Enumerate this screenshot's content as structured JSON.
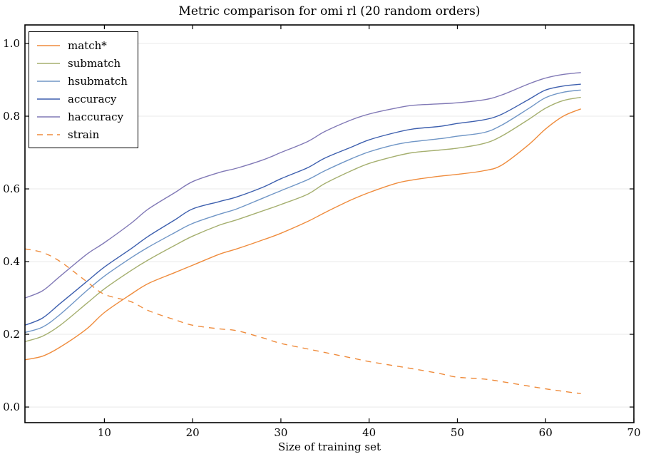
{
  "chart_data": {
    "type": "line",
    "title": "Metric comparison for omi rl (20 random orders)",
    "xlabel": "Size of training set",
    "ylabel": "",
    "xlim": [
      1,
      70
    ],
    "ylim": [
      -0.043,
      1.051
    ],
    "x_ticks": [
      10,
      20,
      30,
      40,
      50,
      60,
      70
    ],
    "y_ticks": [
      0.0,
      0.2,
      0.4,
      0.6,
      0.8,
      1.0
    ],
    "grid": "horizontal-only",
    "legend_position": "upper-left",
    "x": [
      1,
      3,
      5,
      8,
      10,
      13,
      15,
      18,
      20,
      23,
      25,
      28,
      30,
      33,
      35,
      38,
      40,
      43,
      45,
      48,
      50,
      53,
      55,
      58,
      60,
      62,
      64
    ],
    "series": [
      {
        "name": "match*",
        "color": "#ef8c3d",
        "dashed": false,
        "values": [
          0.13,
          0.14,
          0.165,
          0.215,
          0.26,
          0.31,
          0.34,
          0.37,
          0.39,
          0.42,
          0.435,
          0.46,
          0.478,
          0.51,
          0.535,
          0.57,
          0.59,
          0.615,
          0.625,
          0.635,
          0.64,
          0.65,
          0.665,
          0.72,
          0.765,
          0.8,
          0.82
        ]
      },
      {
        "name": "submatch",
        "color": "#a5af6f",
        "dashed": false,
        "values": [
          0.18,
          0.195,
          0.225,
          0.285,
          0.325,
          0.375,
          0.405,
          0.445,
          0.47,
          0.5,
          0.515,
          0.54,
          0.557,
          0.585,
          0.615,
          0.65,
          0.67,
          0.69,
          0.7,
          0.707,
          0.712,
          0.725,
          0.745,
          0.79,
          0.822,
          0.843,
          0.852
        ]
      },
      {
        "name": "hsubmatch",
        "color": "#7096c6",
        "dashed": false,
        "values": [
          0.205,
          0.22,
          0.255,
          0.32,
          0.36,
          0.41,
          0.44,
          0.48,
          0.505,
          0.53,
          0.545,
          0.575,
          0.595,
          0.625,
          0.65,
          0.683,
          0.702,
          0.722,
          0.73,
          0.738,
          0.745,
          0.755,
          0.775,
          0.82,
          0.851,
          0.866,
          0.872
        ]
      },
      {
        "name": "accuracy",
        "color": "#3d5fae",
        "dashed": false,
        "values": [
          0.225,
          0.245,
          0.285,
          0.345,
          0.385,
          0.435,
          0.47,
          0.515,
          0.545,
          0.565,
          0.578,
          0.605,
          0.628,
          0.658,
          0.685,
          0.715,
          0.735,
          0.755,
          0.765,
          0.772,
          0.78,
          0.79,
          0.805,
          0.845,
          0.872,
          0.883,
          0.888
        ]
      },
      {
        "name": "haccuracy",
        "color": "#8179b6",
        "dashed": false,
        "values": [
          0.3,
          0.32,
          0.36,
          0.42,
          0.452,
          0.505,
          0.545,
          0.59,
          0.62,
          0.645,
          0.657,
          0.68,
          0.7,
          0.73,
          0.758,
          0.79,
          0.806,
          0.822,
          0.83,
          0.834,
          0.837,
          0.845,
          0.858,
          0.888,
          0.905,
          0.915,
          0.92
        ]
      },
      {
        "name": "strain",
        "color": "#ef8c3d",
        "dashed": true,
        "values": [
          0.435,
          0.425,
          0.4,
          0.345,
          0.31,
          0.29,
          0.265,
          0.24,
          0.225,
          0.215,
          0.21,
          0.19,
          0.175,
          0.16,
          0.15,
          0.135,
          0.125,
          0.113,
          0.105,
          0.092,
          0.082,
          0.077,
          0.07,
          0.058,
          0.05,
          0.043,
          0.037
        ]
      }
    ]
  },
  "style_colors": {
    "grid": "#e9e9e9",
    "spine": "#000000",
    "background": "#ffffff"
  }
}
